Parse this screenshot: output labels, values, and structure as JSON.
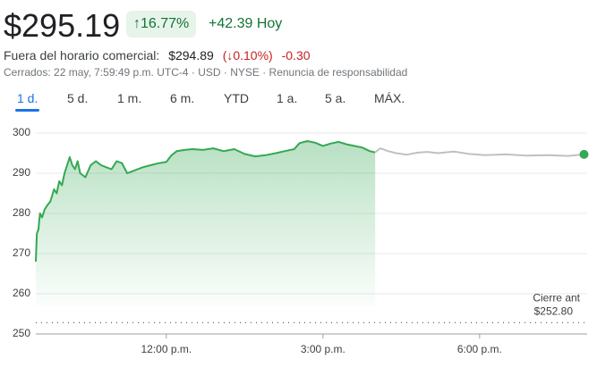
{
  "header": {
    "price": "$295.19",
    "change_pct": "↑16.77%",
    "change_abs": "+42.39",
    "period": "Hoy",
    "after_hours_label": "Fuera del horario comercial:",
    "after_hours_price": "$294.89",
    "after_hours_pct": "(↓0.10%)",
    "after_hours_abs": "-0.30",
    "status": "Cerrados: 22 may, 7:59:49 p.m. UTC-4 · USD · NYSE ·",
    "disclaimer": "Renuncia de responsabilidad"
  },
  "tabs": [
    "1 d.",
    "5 d.",
    "1 m.",
    "6 m.",
    "YTD",
    "1 a.",
    "5 a.",
    "MÁX."
  ],
  "chart_data": {
    "type": "line",
    "xlim": [
      9.5,
      20
    ],
    "xticks": [
      {
        "value": 12,
        "label": "12:00 p.m."
      },
      {
        "value": 15,
        "label": "3:00 p.m."
      },
      {
        "value": 18,
        "label": "6:00 p.m."
      }
    ],
    "ylim": [
      250,
      300
    ],
    "yticks": [
      250,
      260,
      270,
      280,
      290,
      300
    ],
    "grid": true,
    "previous_close_label": "Cierre ant",
    "previous_close": {
      "value": 252.8,
      "label": "$252.80"
    },
    "series": [
      {
        "name": "regular",
        "color": "#34a853",
        "x": [
          9.5,
          9.52,
          9.55,
          9.58,
          9.62,
          9.67,
          9.72,
          9.78,
          9.85,
          9.9,
          9.95,
          10.0,
          10.05,
          10.1,
          10.15,
          10.2,
          10.25,
          10.3,
          10.35,
          10.45,
          10.55,
          10.65,
          10.75,
          10.85,
          10.95,
          11.05,
          11.15,
          11.25,
          11.35,
          11.45,
          11.55,
          11.7,
          11.85,
          12.0,
          12.1,
          12.2,
          12.35,
          12.5,
          12.7,
          12.9,
          13.1,
          13.3,
          13.5,
          13.7,
          13.9,
          14.1,
          14.3,
          14.45,
          14.55,
          14.7,
          14.85,
          15.0,
          15.15,
          15.3,
          15.45,
          15.6,
          15.75,
          15.9,
          16.0
        ],
        "values": [
          268,
          275,
          276,
          280,
          279,
          281,
          282,
          283,
          286,
          285,
          288,
          287,
          290,
          292,
          294,
          292,
          291,
          293,
          290,
          289,
          292,
          293,
          292,
          291.5,
          291,
          293,
          292.5,
          290,
          290.5,
          291,
          291.5,
          292,
          292.5,
          292.8,
          294.5,
          295.5,
          295.8,
          296,
          295.8,
          296.2,
          295.5,
          296,
          294.8,
          294.2,
          294.5,
          295,
          295.6,
          296,
          297.5,
          298,
          297.6,
          296.8,
          297.4,
          297.8,
          297.2,
          296.8,
          296.4,
          295.5,
          295.2
        ]
      },
      {
        "name": "after-hours",
        "color": "#bdc1c6",
        "x": [
          16.0,
          16.1,
          16.25,
          16.4,
          16.6,
          16.8,
          17.0,
          17.2,
          17.5,
          17.8,
          18.1,
          18.5,
          18.9,
          19.3,
          19.7,
          20.0
        ],
        "values": [
          295.2,
          296.2,
          295.5,
          295,
          294.6,
          295.1,
          295.3,
          295,
          295.4,
          294.8,
          294.5,
          294.7,
          294.4,
          294.5,
          294.3,
          294.7
        ]
      }
    ]
  }
}
